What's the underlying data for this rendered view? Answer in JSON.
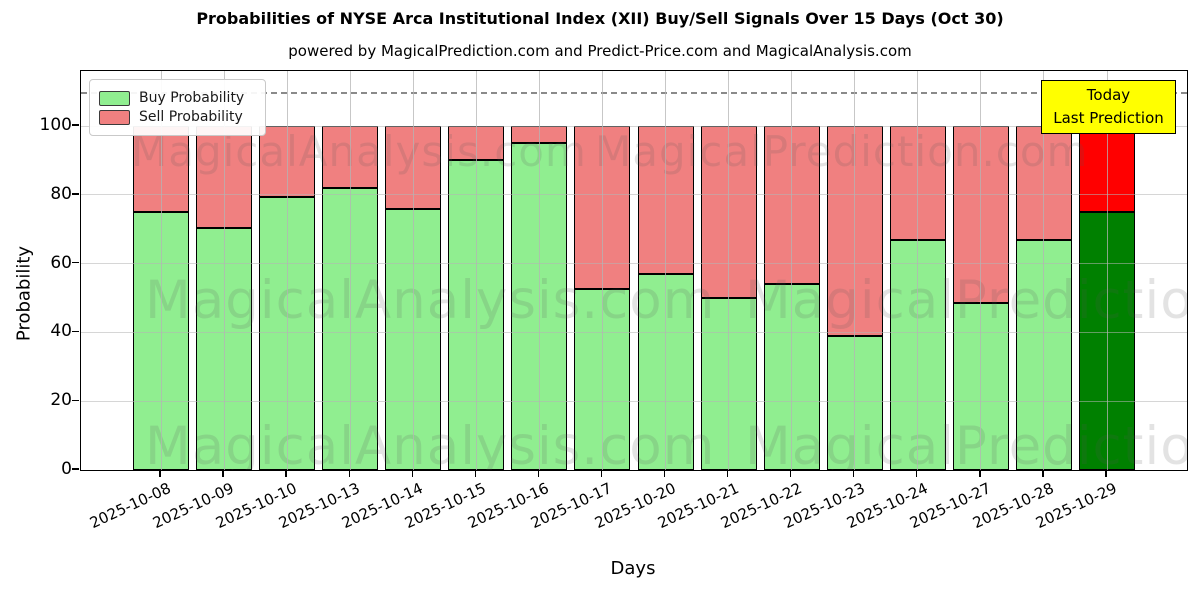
{
  "title": "Probabilities of NYSE Arca Institutional Index (XII) Buy/Sell Signals Over 15 Days (Oct 30)",
  "subtitle": "powered by MagicalPrediction.com and Predict-Price.com and MagicalAnalysis.com",
  "legend": {
    "items": [
      {
        "label": "Buy Probability",
        "color": "#90ee90"
      },
      {
        "label": "Sell Probability",
        "color": "#f08080"
      }
    ]
  },
  "annotation": {
    "line1": "Today",
    "line2": "Last Prediction",
    "bg_color": "#ffff00"
  },
  "watermarks": {
    "left": "MagicalAnalysis.com",
    "right": "MagicalPrediction.com"
  },
  "axes": {
    "xlabel": "Days",
    "ylabel": "Probability",
    "yticks": [
      0,
      20,
      40,
      60,
      80,
      100
    ],
    "ylim": [
      0,
      116
    ],
    "dashed_line_y": 110,
    "grid": "on"
  },
  "chart_data": {
    "type": "bar",
    "stacked": true,
    "title": "Probabilities of NYSE Arca Institutional Index (XII) Buy/Sell Signals Over 15 Days (Oct 30)",
    "xlabel": "Days",
    "ylabel": "Probability",
    "ylim": [
      0,
      116
    ],
    "legend_position": "upper left",
    "categories": [
      "2025-10-08",
      "2025-10-09",
      "2025-10-10",
      "2025-10-13",
      "2025-10-14",
      "2025-10-15",
      "2025-10-16",
      "2025-10-17",
      "2025-10-20",
      "2025-10-21",
      "2025-10-22",
      "2025-10-23",
      "2025-10-24",
      "2025-10-27",
      "2025-10-28",
      "2025-10-29"
    ],
    "series": [
      {
        "name": "Buy Probability",
        "color": "#90ee90",
        "values": [
          75,
          70.5,
          79.5,
          82,
          76,
          90,
          95,
          52.5,
          57,
          50,
          54,
          39,
          67,
          48.5,
          67,
          75
        ]
      },
      {
        "name": "Sell Probability",
        "color": "#f08080",
        "values": [
          25,
          29.5,
          20.5,
          18,
          24,
          10,
          5,
          47.5,
          43,
          50,
          46,
          61,
          33,
          51.5,
          33,
          25
        ]
      }
    ],
    "highlight_last_bar": {
      "buy_color": "#008000",
      "sell_color": "#ff0000",
      "note": "Today / Last Prediction"
    }
  }
}
